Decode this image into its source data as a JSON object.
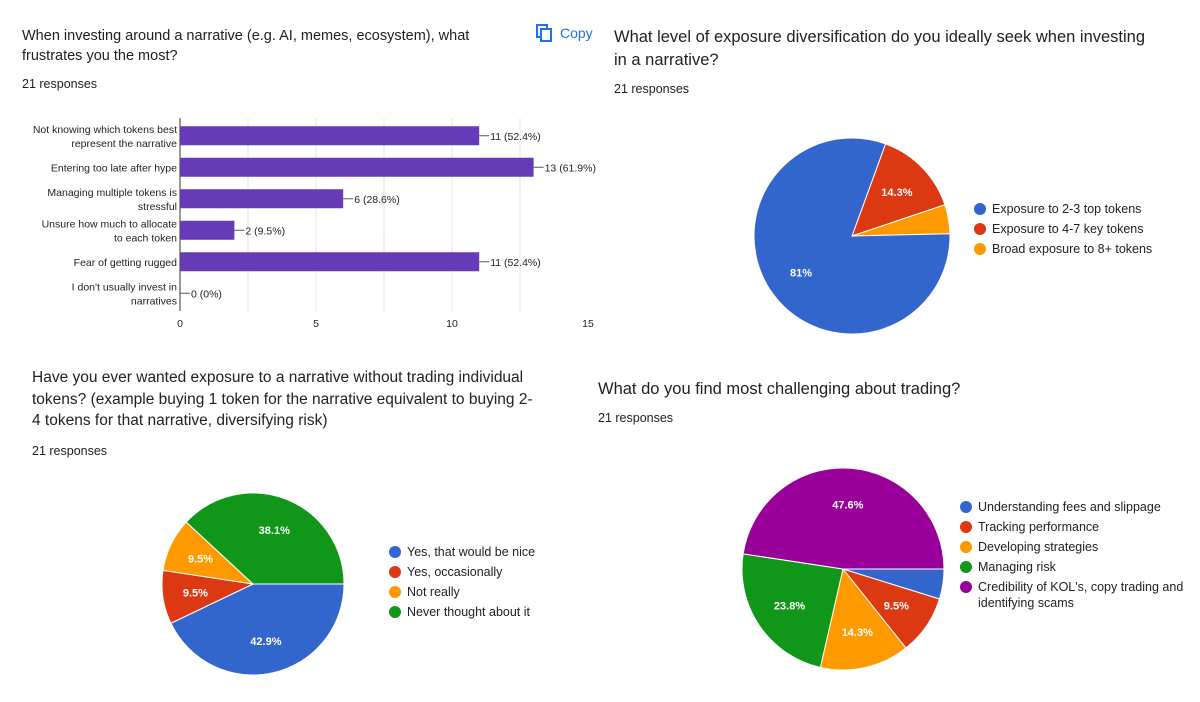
{
  "copy_label": "Copy",
  "colors": {
    "blue": "#3366cc",
    "red": "#dc3912",
    "orange": "#ff9900",
    "green": "#109618",
    "purple": "#990099",
    "bar": "#673ab7"
  },
  "q1": {
    "title_line1": "When investing around a narrative (e.g. AI, memes, ecosystem), what",
    "title_line2": "frustrates you the most?",
    "responses": "21 responses",
    "chart_data": {
      "type": "bar",
      "orientation": "horizontal",
      "categories": [
        [
          "Not knowing which tokens best",
          "represent the narrative"
        ],
        [
          "Entering too late after hype"
        ],
        [
          "Managing multiple tokens is",
          "stressful"
        ],
        [
          "Unsure how much to allocate",
          "to each token"
        ],
        [
          "Fear of getting rugged"
        ],
        [
          "I don't usually invest in",
          "narratives"
        ]
      ],
      "values": [
        11,
        13,
        6,
        2,
        11,
        0
      ],
      "value_labels": [
        "11 (52.4%)",
        "13 (61.9%)",
        "6 (28.6%)",
        "2 (9.5%)",
        "11 (52.4%)",
        "0 (0%)"
      ],
      "xlim": [
        0,
        15
      ],
      "xticks": [
        "0",
        "5",
        "10",
        "15"
      ]
    }
  },
  "q2": {
    "title_line1": "What level of exposure diversification do you ideally seek when investing",
    "title_line2": "in a narrative?",
    "responses": "21 responses",
    "chart_data": {
      "type": "pie",
      "labels": [
        "Exposure to 2-3 top tokens",
        "Exposure to 4-7 key tokens",
        "Broad exposure to 8+ tokens"
      ],
      "values": [
        81,
        14.3,
        4.8
      ],
      "slice_labels": [
        "81%",
        "14.3%",
        ""
      ],
      "colors": [
        "#3366cc",
        "#dc3912",
        "#ff9900"
      ]
    }
  },
  "q3": {
    "title_line1": "Have you ever wanted exposure to a narrative without trading individual",
    "title_line2": "tokens? (example buying 1 token for the narrative equivalent to buying 2-",
    "title_line3": "4 tokens for that narrative, diversifying risk)",
    "responses": "21 responses",
    "chart_data": {
      "type": "pie",
      "labels": [
        "Yes, that would be nice",
        "Yes, occasionally",
        "Not really",
        "Never thought about it"
      ],
      "values": [
        42.9,
        9.5,
        9.5,
        38.1
      ],
      "slice_labels": [
        "42.9%",
        "9.5%",
        "9.5%",
        "38.1%"
      ],
      "colors": [
        "#3366cc",
        "#dc3912",
        "#ff9900",
        "#109618"
      ]
    }
  },
  "q4": {
    "title_line1": "What do you find most challenging about trading?",
    "responses": "21 responses",
    "chart_data": {
      "type": "pie",
      "labels": [
        "Understanding fees and slippage",
        "Tracking performance",
        "Developing strategies",
        "Managing risk",
        "Credibility of KOL's, copy trading and identifying scams"
      ],
      "legend_lines": [
        [
          "Understanding fees and slippage"
        ],
        [
          "Tracking performance"
        ],
        [
          "Developing strategies"
        ],
        [
          "Managing risk"
        ],
        [
          "Credibility of KOL's, copy trading and",
          "identifying scams"
        ]
      ],
      "values": [
        4.8,
        9.5,
        14.3,
        23.8,
        47.6
      ],
      "slice_labels": [
        "",
        "9.5%",
        "14.3%",
        "23.8%",
        "47.6%"
      ],
      "colors": [
        "#3366cc",
        "#dc3912",
        "#ff9900",
        "#109618",
        "#990099"
      ]
    }
  }
}
